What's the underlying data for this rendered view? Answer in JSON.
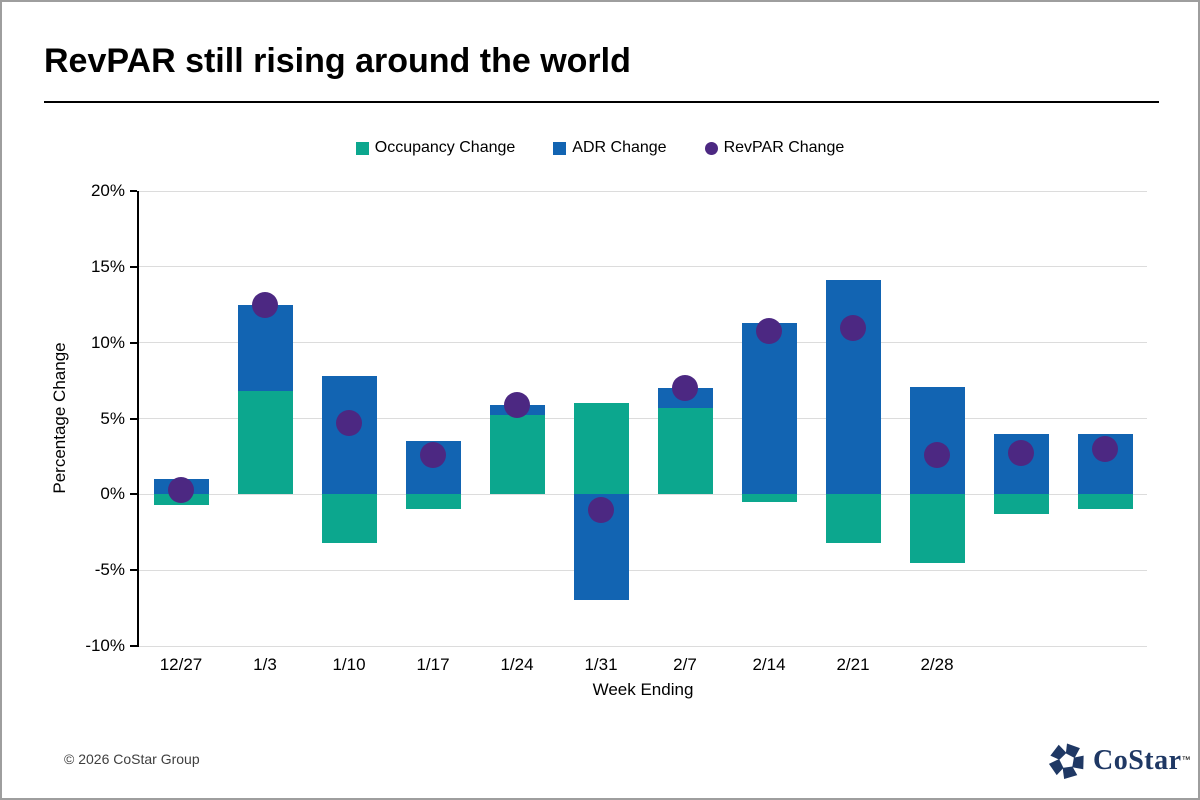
{
  "page": {
    "title": "RevPAR still rising around the world",
    "footer_copyright": "© 2026 CoStar Group",
    "logo_text": "CoStar",
    "logo_tm": "™"
  },
  "colors": {
    "occupancy": "#0CA78E",
    "adr": "#1264B2",
    "revpar": "#4C2882",
    "gridline": "#DCDCDC",
    "axis": "#000000",
    "logo_navy": "#1F3864"
  },
  "chart_data": {
    "type": "bar",
    "stacked": true,
    "overlay": "scatter",
    "title": "RevPAR still rising around the world",
    "xlabel": "Week Ending",
    "ylabel": "Percentage Change",
    "ylim": [
      -10,
      20
    ],
    "grid": true,
    "legend_position": "top",
    "y_ticks": [
      {
        "label": "20%",
        "value": 20
      },
      {
        "label": "15%",
        "value": 15
      },
      {
        "label": "10%",
        "value": 10
      },
      {
        "label": "5%",
        "value": 5
      },
      {
        "label": "0%",
        "value": 0
      },
      {
        "label": "-5%",
        "value": -5
      },
      {
        "label": "-10%",
        "value": -10
      }
    ],
    "categories": [
      "12/27",
      "1/3",
      "1/10",
      "1/17",
      "1/24",
      "1/31",
      "2/7",
      "2/14",
      "2/21",
      "2/28",
      "",
      ""
    ],
    "series": [
      {
        "name": "Occupancy Change",
        "type": "bar",
        "color_key": "occupancy",
        "values": [
          -0.7,
          6.8,
          -3.2,
          -1.0,
          5.2,
          6.0,
          5.7,
          -0.5,
          -3.2,
          -4.5,
          -1.3,
          -1.0
        ]
      },
      {
        "name": "ADR Change",
        "type": "bar",
        "color_key": "adr",
        "values": [
          1.0,
          5.7,
          7.8,
          3.5,
          0.7,
          -7.0,
          1.3,
          11.3,
          14.1,
          7.1,
          4.0,
          4.0
        ]
      },
      {
        "name": "RevPAR Change",
        "type": "scatter",
        "color_key": "revpar",
        "values": [
          0.3,
          12.5,
          4.7,
          2.6,
          5.9,
          -1.0,
          7.0,
          10.8,
          11.0,
          2.6,
          2.7,
          3.0
        ]
      }
    ]
  }
}
